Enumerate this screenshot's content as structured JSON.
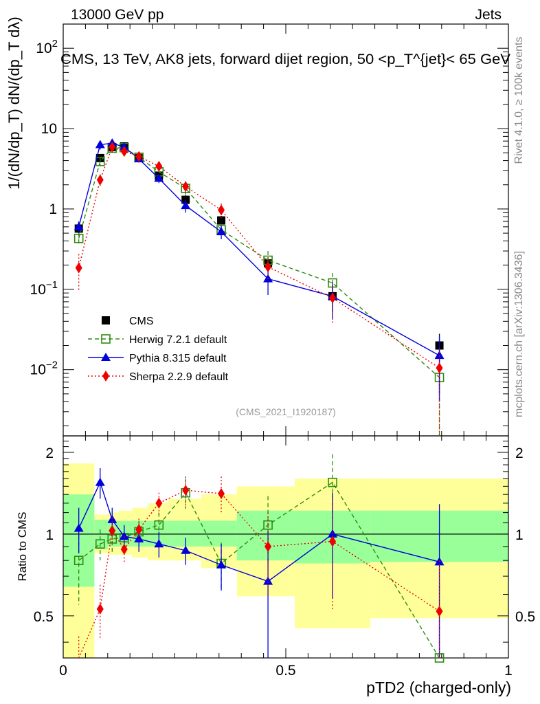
{
  "header": {
    "left": "13000 GeV pp",
    "right": "Jets"
  },
  "side_labels": {
    "rivet": "Rivet 4.1.0, ≥ 100k events",
    "mcplots": "mcplots.cern.ch [arXiv:1306.3436]"
  },
  "colors": {
    "cms": "#000000",
    "herwig": "#2e8b12",
    "pythia": "#0000dd",
    "sherpa": "#ee0000",
    "band_outer": "#ffff99",
    "band_inner": "#99ff99"
  },
  "chart_data": {
    "type": "line",
    "title": "CMS, 13 TeV, AK8 jets, forward dijet region, 50 <p_T^{jet}< 65 GeV",
    "analysis_id": "(CMS_2021_I1920187)",
    "xlabel": "pTD2 (charged-only)",
    "ylabel": "1/(dN/dp_T) dN/(dp_T dλ)",
    "ratio_ylabel": "Ratio to CMS",
    "xlim": [
      0,
      1
    ],
    "ylim": [
      0.0015,
      200
    ],
    "yscale": "log",
    "ratio_ylim": [
      0.35,
      2.3
    ],
    "x_ticks": [
      {
        "v": 0,
        "label": "0"
      },
      {
        "v": 0.5,
        "label": "0.5"
      },
      {
        "v": 1,
        "label": "1"
      }
    ],
    "y_ticks": [
      {
        "v": 0.01,
        "base": "10",
        "exp": "−2"
      },
      {
        "v": 0.1,
        "base": "10",
        "exp": "−1"
      },
      {
        "v": 1,
        "base": "1",
        "exp": ""
      },
      {
        "v": 10,
        "base": "10",
        "exp": ""
      },
      {
        "v": 100,
        "base": "10",
        "exp": "2"
      }
    ],
    "ratio_ticks": [
      {
        "v": 0.5,
        "label": "0.5"
      },
      {
        "v": 1,
        "label": "1"
      },
      {
        "v": 2,
        "label": "2"
      }
    ],
    "bin_edges": [
      0,
      0.07,
      0.1,
      0.125,
      0.155,
      0.19,
      0.235,
      0.31,
      0.39,
      0.52,
      0.69,
      1.0
    ],
    "x": [
      0.035,
      0.083,
      0.11,
      0.137,
      0.17,
      0.215,
      0.275,
      0.355,
      0.46,
      0.605,
      0.845
    ],
    "series": [
      {
        "name": "CMS",
        "key": "cms",
        "marker": "square-filled",
        "line": "none",
        "values": [
          0.57,
          4.3,
          5.9,
          6.0,
          4.3,
          2.6,
          1.3,
          0.72,
          0.21,
          0.082,
          0.02
        ],
        "err_lo": [
          0.08,
          0.5,
          0.5,
          0.5,
          0.4,
          0.3,
          0.2,
          0.1,
          0.04,
          0.03,
          0.015
        ],
        "err_hi": [
          0.08,
          0.5,
          0.5,
          0.5,
          0.4,
          0.3,
          0.2,
          0.1,
          0.04,
          0.03,
          0.008
        ],
        "ratio": [
          1,
          1,
          1,
          1,
          1,
          1,
          1,
          1,
          1,
          1,
          1
        ]
      },
      {
        "name": "Herwig 7.2.1 default",
        "key": "herwig",
        "marker": "square-open",
        "line": "dashed",
        "values": [
          0.43,
          3.9,
          5.7,
          5.8,
          4.4,
          2.9,
          1.8,
          0.55,
          0.23,
          0.12,
          0.008
        ],
        "err_lo": [
          0.08,
          0.5,
          0.5,
          0.5,
          0.4,
          0.4,
          0.3,
          0.1,
          0.06,
          0.04,
          0.0075
        ],
        "err_hi": [
          0.08,
          0.5,
          0.5,
          0.5,
          0.4,
          0.4,
          0.3,
          0.1,
          0.07,
          0.04,
          0.004
        ],
        "ratio": [
          0.8,
          0.92,
          0.96,
          0.97,
          1.02,
          1.08,
          1.42,
          0.78,
          1.08,
          1.55,
          0.35
        ],
        "ratio_err": [
          0.25,
          0.12,
          0.1,
          0.1,
          0.1,
          0.12,
          0.18,
          0.15,
          0.3,
          0.42,
          0.3
        ]
      },
      {
        "name": "Pythia 8.315 default",
        "key": "pythia",
        "marker": "triangle-filled",
        "line": "solid",
        "values": [
          0.6,
          6.3,
          6.6,
          5.9,
          4.2,
          2.4,
          1.1,
          0.52,
          0.135,
          0.082,
          0.015
        ],
        "err_lo": [
          0.1,
          0.8,
          0.8,
          0.5,
          0.4,
          0.3,
          0.2,
          0.1,
          0.05,
          0.04,
          0.011
        ],
        "err_hi": [
          0.1,
          0.8,
          0.8,
          0.5,
          0.4,
          0.3,
          0.2,
          0.1,
          0.05,
          0.04,
          0.011
        ],
        "ratio": [
          1.05,
          1.55,
          1.13,
          0.98,
          0.96,
          0.92,
          0.87,
          0.77,
          0.67,
          1.0,
          0.79
        ],
        "ratio_err": [
          0.2,
          0.2,
          0.12,
          0.1,
          0.1,
          0.1,
          0.1,
          0.15,
          0.35,
          0.42,
          0.5
        ]
      },
      {
        "name": "Sherpa 2.2.9 default",
        "key": "sherpa",
        "marker": "diamond-filled",
        "line": "dotted",
        "values": [
          0.185,
          2.3,
          5.9,
          5.2,
          4.5,
          3.4,
          1.9,
          0.97,
          0.19,
          0.078,
          0.0105
        ],
        "err_lo": [
          0.09,
          0.4,
          0.5,
          0.5,
          0.4,
          0.4,
          0.3,
          0.2,
          0.06,
          0.04,
          0.009
        ],
        "err_hi": [
          0.09,
          0.4,
          0.5,
          0.5,
          0.4,
          0.4,
          0.3,
          0.2,
          0.06,
          0.04,
          0.008
        ],
        "ratio": [
          0.32,
          0.53,
          1.03,
          0.88,
          1.04,
          1.3,
          1.45,
          1.41,
          0.9,
          0.94,
          0.52
        ],
        "ratio_err": [
          0.1,
          0.12,
          0.12,
          0.1,
          0.1,
          0.12,
          0.18,
          0.22,
          0.3,
          0.42,
          0.28
        ]
      }
    ],
    "bands": {
      "inner_lo": [
        0.64,
        0.88,
        0.9,
        0.9,
        0.9,
        0.9,
        0.9,
        0.9,
        0.8,
        0.78,
        0.79
      ],
      "inner_hi": [
        1.4,
        1.13,
        1.12,
        1.12,
        1.12,
        1.12,
        1.12,
        1.12,
        1.22,
        1.22,
        1.22
      ],
      "outer_lo": [
        0.35,
        0.85,
        0.84,
        0.84,
        0.82,
        0.8,
        0.8,
        0.75,
        0.59,
        0.45,
        0.49
      ],
      "outer_hi": [
        1.82,
        1.18,
        1.2,
        1.22,
        1.25,
        1.3,
        1.35,
        1.4,
        1.5,
        1.6,
        1.6
      ]
    }
  }
}
